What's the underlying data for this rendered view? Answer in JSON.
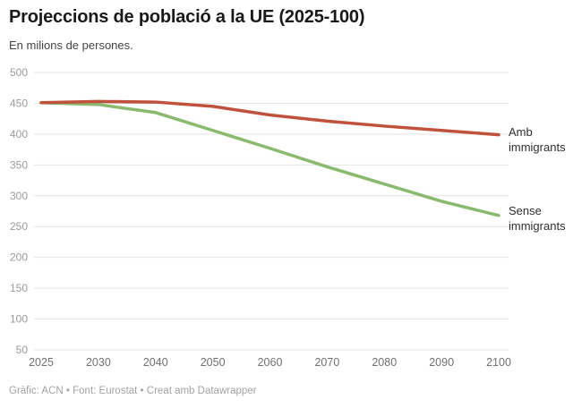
{
  "header": {
    "title": "Projeccions de població a la UE (2025-100)",
    "subtitle": "En milions de persones."
  },
  "chart_data": {
    "type": "line",
    "title": "Projeccions de població a la UE (2025-100)",
    "subtitle": "En milions de persones.",
    "xlabel": "",
    "ylabel": "En milions de persones",
    "x": [
      "2025",
      "2030",
      "2040",
      "2050",
      "2060",
      "2070",
      "2080",
      "2090",
      "2100"
    ],
    "series": [
      {
        "name": "Amb immigrants",
        "color": "#c0513c",
        "values": [
          451,
          453,
          452,
          445,
          431,
          421,
          413,
          406,
          399
        ]
      },
      {
        "name": "Sense immigrants",
        "color": "#8aba6e",
        "values": [
          451,
          448,
          435,
          406,
          377,
          347,
          319,
          291,
          268
        ]
      }
    ],
    "ylim": [
      50,
      500
    ],
    "yticks": [
      50,
      100,
      150,
      200,
      250,
      300,
      350,
      400,
      450,
      500
    ],
    "grid": true,
    "gridline_color": "#e4e4e4",
    "legend_position": "inline-right-of-line-ends"
  },
  "footer": {
    "attribution": "Gràfic: ACN • Font: Eurostat • Creat amb Datawrapper"
  }
}
